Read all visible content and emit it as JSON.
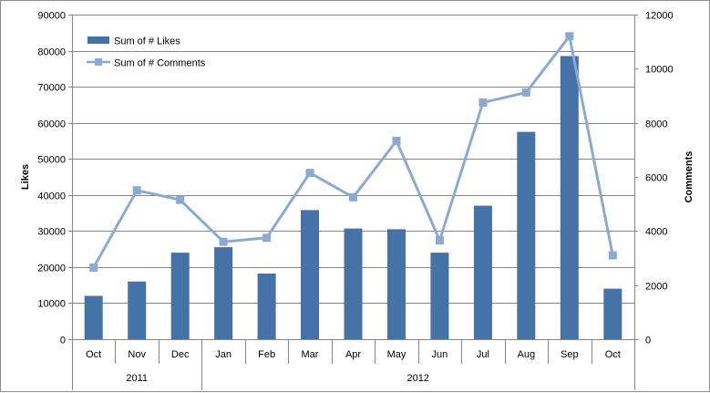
{
  "chart_data": {
    "type": "bar",
    "categories": [
      "Oct",
      "Nov",
      "Dec",
      "Jan",
      "Feb",
      "Mar",
      "Apr",
      "May",
      "Jun",
      "Jul",
      "Aug",
      "Sep",
      "Oct"
    ],
    "groups": [
      {
        "label": "2011",
        "span": 3
      },
      {
        "label": "2012",
        "span": 10
      }
    ],
    "series": [
      {
        "name": "Sum of # Likes",
        "type": "bar",
        "axis": "left",
        "color": "#4572A7",
        "values": [
          12000,
          16000,
          24000,
          25500,
          18200,
          35800,
          30700,
          30500,
          24000,
          37000,
          57500,
          78500,
          14000
        ]
      },
      {
        "name": "Sum of # Comments",
        "type": "line",
        "axis": "right",
        "color": "#8EA9D0",
        "values": [
          2650,
          5500,
          5150,
          3600,
          3750,
          6150,
          5250,
          7330,
          3650,
          8750,
          9120,
          11200,
          3100
        ]
      }
    ],
    "ylabel": "Likes",
    "y2label": "Comments",
    "ylim": [
      0,
      90000
    ],
    "yticks": [
      "0",
      "10000",
      "20000",
      "30000",
      "40000",
      "50000",
      "60000",
      "70000",
      "80000",
      "90000"
    ],
    "y2lim": [
      0,
      12000
    ],
    "y2ticks": [
      "0",
      "2000",
      "4000",
      "6000",
      "8000",
      "10000",
      "12000"
    ],
    "grid": true,
    "legend": "top-left"
  }
}
